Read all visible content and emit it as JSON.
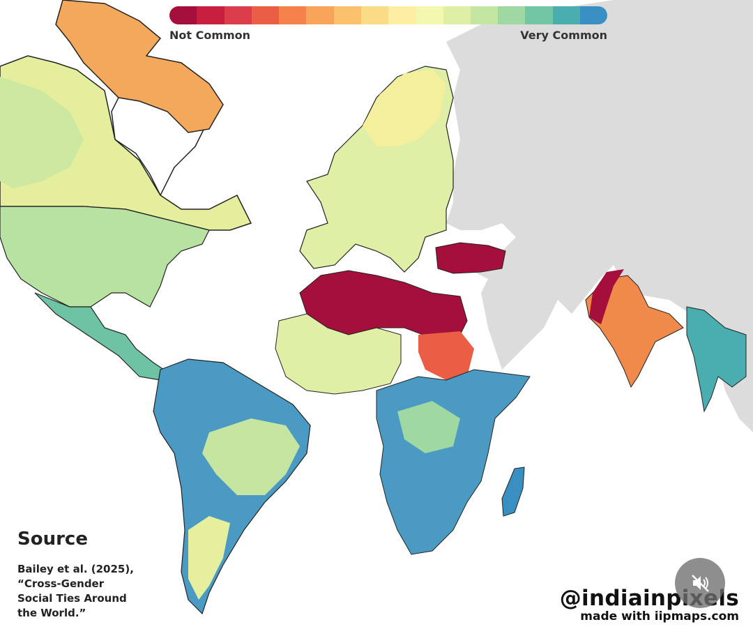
{
  "legend": {
    "low_label": "Not Common",
    "high_label": "Very Common",
    "colors": [
      "#a50f3c",
      "#c91f3e",
      "#dc3d4a",
      "#ea5e45",
      "#f4824a",
      "#f8a45a",
      "#fbc26b",
      "#fcdb86",
      "#fdeea3",
      "#f4f7b0",
      "#dff0a6",
      "#c3e6a0",
      "#9fd8a1",
      "#72c6a3",
      "#4aadb0",
      "#3a8fc2"
    ]
  },
  "source": {
    "title": "Source",
    "lines": [
      "Bailey et al. (2025),",
      "“Cross-Gender",
      "Social Ties Around",
      "the World.”"
    ]
  },
  "credit": {
    "handle": "@indiainpixels",
    "made_with": "made with iipmaps.com"
  },
  "controls": {
    "mute_icon": "speaker-muted-icon"
  }
}
